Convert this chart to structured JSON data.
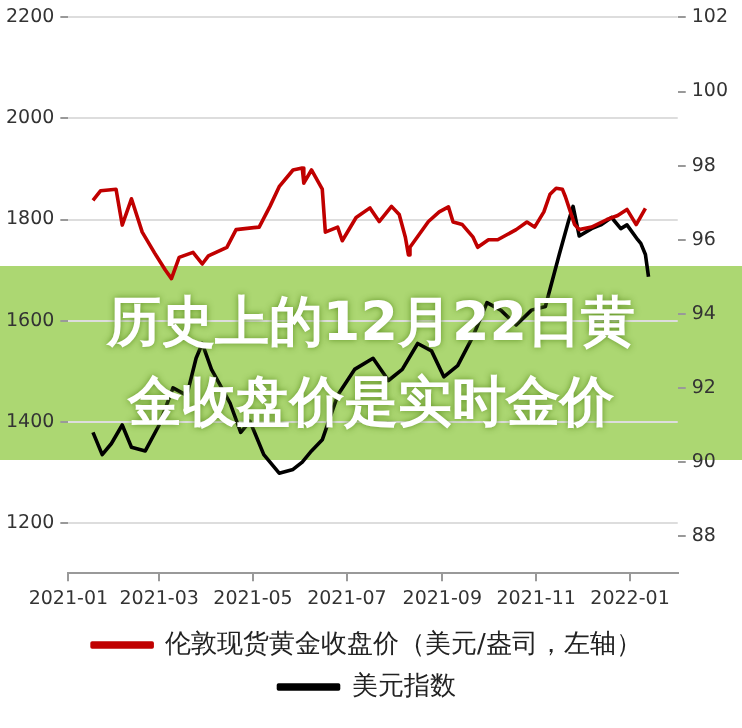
{
  "chart_data": {
    "type": "line",
    "annotations": [
      "历史上的12月22日黄金收盘价是实时金价"
    ],
    "xlim": [
      "2021-01-01",
      "2022-02-01"
    ],
    "xticks": [
      {
        "value": "2021-01-01",
        "label": "2021-01"
      },
      {
        "value": "2021-03-01",
        "label": "2021-03"
      },
      {
        "value": "2021-05-01",
        "label": "2021-05"
      },
      {
        "value": "2021-07-01",
        "label": "2021-07"
      },
      {
        "value": "2021-09-01",
        "label": "2021-09"
      },
      {
        "value": "2021-11-01",
        "label": "2021-11"
      },
      {
        "value": "2022-01-01",
        "label": "2022-01"
      }
    ],
    "ylim": [
      1100,
      2200
    ],
    "yticks": [
      1200,
      1400,
      1600,
      1800,
      2000,
      2200
    ],
    "y2lim": [
      87,
      102
    ],
    "y2ticks": [
      88,
      90,
      92,
      94,
      96,
      98,
      100,
      102
    ],
    "grid": "y",
    "legend": "bottom",
    "marker": "none",
    "line_style": "solid",
    "series": [
      {
        "name": "伦敦现货黄金收盘价（美元/盎司，左轴）",
        "color": "#c00000",
        "x": [
          "2021-01-17",
          "2021-01-22",
          "2021-02-01",
          "2021-02-05",
          "2021-02-11",
          "2021-02-18",
          "2021-02-26",
          "2021-03-05",
          "2021-03-09",
          "2021-03-14",
          "2021-03-23",
          "2021-03-29",
          "2021-04-02",
          "2021-04-14",
          "2021-04-20",
          "2021-05-05",
          "2021-05-12",
          "2021-05-18",
          "2021-05-27",
          "2021-06-02",
          "2021-06-03",
          "2021-06-08",
          "2021-06-15",
          "2021-06-17",
          "2021-06-25",
          "2021-06-28",
          "2021-07-07",
          "2021-07-16",
          "2021-07-22",
          "2021-07-30",
          "2021-08-04",
          "2021-08-08",
          "2021-08-10",
          "2021-08-11",
          "2021-08-23",
          "2021-08-30",
          "2021-09-05",
          "2021-09-08",
          "2021-09-14",
          "2021-09-21",
          "2021-09-24",
          "2021-10-01",
          "2021-10-07",
          "2021-10-19",
          "2021-10-26",
          "2021-10-31",
          "2021-11-06",
          "2021-11-10",
          "2021-11-14",
          "2021-11-18",
          "2021-11-20",
          "2021-11-26",
          "2021-11-29",
          "2021-12-07",
          "2021-12-17",
          "2021-12-24",
          "2021-12-30",
          "2022-01-05",
          "2022-01-11"
        ],
        "values": [
          1838,
          1857,
          1860,
          1789,
          1841,
          1775,
          1734,
          1700,
          1683,
          1725,
          1735,
          1712,
          1728,
          1745,
          1780,
          1785,
          1826,
          1865,
          1898,
          1902,
          1872,
          1898,
          1860,
          1775,
          1785,
          1758,
          1804,
          1823,
          1796,
          1826,
          1810,
          1765,
          1730,
          1745,
          1796,
          1815,
          1825,
          1795,
          1790,
          1765,
          1745,
          1760,
          1760,
          1780,
          1795,
          1785,
          1815,
          1850,
          1862,
          1860,
          1845,
          1790,
          1780,
          1785,
          1800,
          1808,
          1820,
          1790,
          1822
        ]
      },
      {
        "name": "美元指数",
        "color": "#000000",
        "axis": "y2",
        "x": [
          "2021-01-17",
          "2021-01-23",
          "2021-01-29",
          "2021-02-05",
          "2021-02-11",
          "2021-02-20",
          "2021-03-01",
          "2021-03-10",
          "2021-03-19",
          "2021-03-25",
          "2021-03-29",
          "2021-04-04",
          "2021-04-16",
          "2021-04-23",
          "2021-04-29",
          "2021-05-08",
          "2021-05-18",
          "2021-05-27",
          "2021-06-02",
          "2021-06-08",
          "2021-06-15",
          "2021-06-25",
          "2021-07-06",
          "2021-07-18",
          "2021-07-28",
          "2021-08-06",
          "2021-08-16",
          "2021-08-25",
          "2021-09-02",
          "2021-09-11",
          "2021-09-21",
          "2021-09-30",
          "2021-10-09",
          "2021-10-19",
          "2021-10-29",
          "2021-11-07",
          "2021-11-16",
          "2021-11-22",
          "2021-11-25",
          "2021-11-29",
          "2021-12-07",
          "2021-12-13",
          "2021-12-20",
          "2021-12-26",
          "2021-12-30",
          "2022-01-06",
          "2022-01-08",
          "2022-01-11",
          "2022-01-13"
        ],
        "values": [
          90.8,
          90.2,
          90.5,
          91.0,
          90.4,
          90.3,
          91.0,
          92.0,
          91.8,
          92.8,
          93.2,
          92.5,
          91.6,
          90.8,
          91.1,
          90.2,
          89.7,
          89.8,
          90.0,
          90.3,
          90.6,
          91.8,
          92.5,
          92.8,
          92.2,
          92.5,
          93.2,
          93.0,
          92.3,
          92.6,
          93.4,
          94.3,
          94.1,
          93.7,
          94.1,
          94.2,
          95.6,
          96.5,
          96.9,
          96.1,
          96.3,
          96.4,
          96.6,
          96.3,
          96.4,
          96.0,
          95.9,
          95.6,
          95.0
        ]
      }
    ]
  }
}
